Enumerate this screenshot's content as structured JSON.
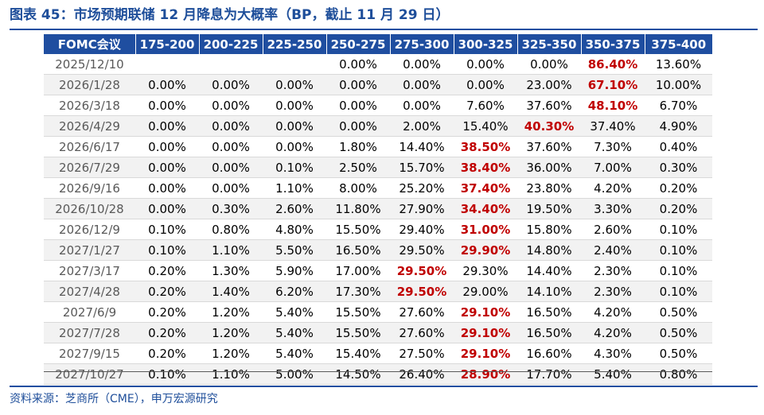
{
  "title": "图表 45：市场预期联储 12 月降息为大概率（BP，截止 11 月 29 日）",
  "source": "资料来源：芝商所（CME），申万宏源研究",
  "colors": {
    "header_bg": "#1f4ea0",
    "header_text": "#ffffff",
    "title_text": "#1e4e9a",
    "highlight": "#c00000",
    "row_alt_bg": "#f2f2f2"
  },
  "chart_data": {
    "type": "table",
    "columns": [
      "FOMC会议",
      "175-200",
      "200-225",
      "225-250",
      "250-275",
      "275-300",
      "300-325",
      "325-350",
      "350-375",
      "375-400"
    ],
    "rows": [
      {
        "date": "2025/12/10",
        "values": [
          "",
          "",
          "",
          "0.00%",
          "0.00%",
          "0.00%",
          "0.00%",
          "86.40%",
          "13.60%"
        ],
        "highlight": 7
      },
      {
        "date": "2026/1/28",
        "values": [
          "0.00%",
          "0.00%",
          "0.00%",
          "0.00%",
          "0.00%",
          "0.00%",
          "23.00%",
          "67.10%",
          "10.00%"
        ],
        "highlight": 7
      },
      {
        "date": "2026/3/18",
        "values": [
          "0.00%",
          "0.00%",
          "0.00%",
          "0.00%",
          "0.00%",
          "7.60%",
          "37.60%",
          "48.10%",
          "6.70%"
        ],
        "highlight": 7
      },
      {
        "date": "2026/4/29",
        "values": [
          "0.00%",
          "0.00%",
          "0.00%",
          "0.00%",
          "2.00%",
          "15.40%",
          "40.30%",
          "37.40%",
          "4.90%"
        ],
        "highlight": 6
      },
      {
        "date": "2026/6/17",
        "values": [
          "0.00%",
          "0.00%",
          "0.00%",
          "1.80%",
          "14.40%",
          "38.50%",
          "37.60%",
          "7.30%",
          "0.40%"
        ],
        "highlight": 5
      },
      {
        "date": "2026/7/29",
        "values": [
          "0.00%",
          "0.00%",
          "0.10%",
          "2.50%",
          "15.70%",
          "38.40%",
          "36.00%",
          "7.00%",
          "0.30%"
        ],
        "highlight": 5
      },
      {
        "date": "2026/9/16",
        "values": [
          "0.00%",
          "0.00%",
          "1.10%",
          "8.00%",
          "25.20%",
          "37.40%",
          "23.80%",
          "4.20%",
          "0.20%"
        ],
        "highlight": 5
      },
      {
        "date": "2026/10/28",
        "values": [
          "0.00%",
          "0.30%",
          "2.60%",
          "11.80%",
          "27.90%",
          "34.40%",
          "19.50%",
          "3.30%",
          "0.20%"
        ],
        "highlight": 5
      },
      {
        "date": "2026/12/9",
        "values": [
          "0.10%",
          "0.80%",
          "4.80%",
          "15.50%",
          "29.40%",
          "31.00%",
          "15.80%",
          "2.60%",
          "0.10%"
        ],
        "highlight": 5
      },
      {
        "date": "2027/1/27",
        "values": [
          "0.10%",
          "1.10%",
          "5.50%",
          "16.50%",
          "29.50%",
          "29.90%",
          "14.80%",
          "2.40%",
          "0.10%"
        ],
        "highlight": 5
      },
      {
        "date": "2027/3/17",
        "values": [
          "0.20%",
          "1.30%",
          "5.90%",
          "17.00%",
          "29.50%",
          "29.30%",
          "14.40%",
          "2.30%",
          "0.10%"
        ],
        "highlight": 4
      },
      {
        "date": "2027/4/28",
        "values": [
          "0.20%",
          "1.40%",
          "6.20%",
          "17.30%",
          "29.50%",
          "29.00%",
          "14.10%",
          "2.30%",
          "0.10%"
        ],
        "highlight": 4
      },
      {
        "date": "2027/6/9",
        "values": [
          "0.20%",
          "1.20%",
          "5.40%",
          "15.50%",
          "27.60%",
          "29.10%",
          "16.50%",
          "4.20%",
          "0.50%"
        ],
        "highlight": 5
      },
      {
        "date": "2027/7/28",
        "values": [
          "0.20%",
          "1.20%",
          "5.40%",
          "15.50%",
          "27.60%",
          "29.10%",
          "16.50%",
          "4.20%",
          "0.50%"
        ],
        "highlight": 5
      },
      {
        "date": "2027/9/15",
        "values": [
          "0.20%",
          "1.20%",
          "5.40%",
          "15.40%",
          "27.50%",
          "29.10%",
          "16.60%",
          "4.30%",
          "0.50%"
        ],
        "highlight": 5
      },
      {
        "date": "2027/10/27",
        "values": [
          "0.10%",
          "1.10%",
          "5.00%",
          "14.50%",
          "26.40%",
          "28.90%",
          "17.70%",
          "5.40%",
          "0.80%"
        ],
        "highlight": 5
      }
    ]
  }
}
